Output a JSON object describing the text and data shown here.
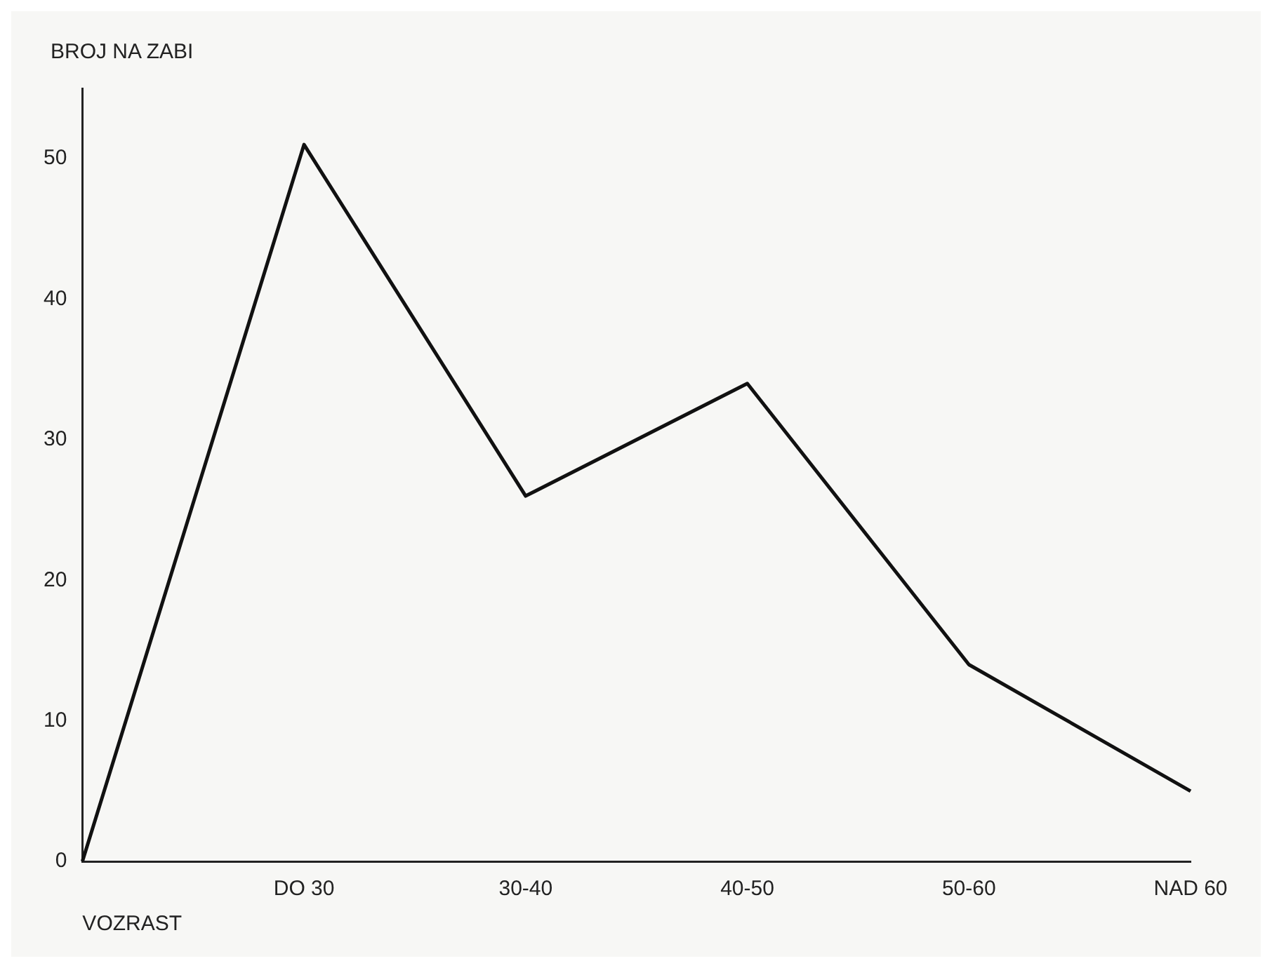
{
  "chart_data": {
    "type": "line",
    "xlabel": "VOZRAST",
    "ylabel": "BROJ NA ZABI",
    "categories": [
      null,
      "DO 30",
      "30-40",
      "40-50",
      "50-60",
      "NAD 60"
    ],
    "series": [
      {
        "color": "#111111",
        "values": [
          0,
          51,
          26,
          34,
          14,
          5
        ]
      }
    ],
    "ylim": [
      0,
      55
    ],
    "yticks": [
      0,
      10,
      20,
      30,
      40,
      50
    ],
    "grid": false,
    "legend": false,
    "marker": "none",
    "line_style": "solid"
  }
}
